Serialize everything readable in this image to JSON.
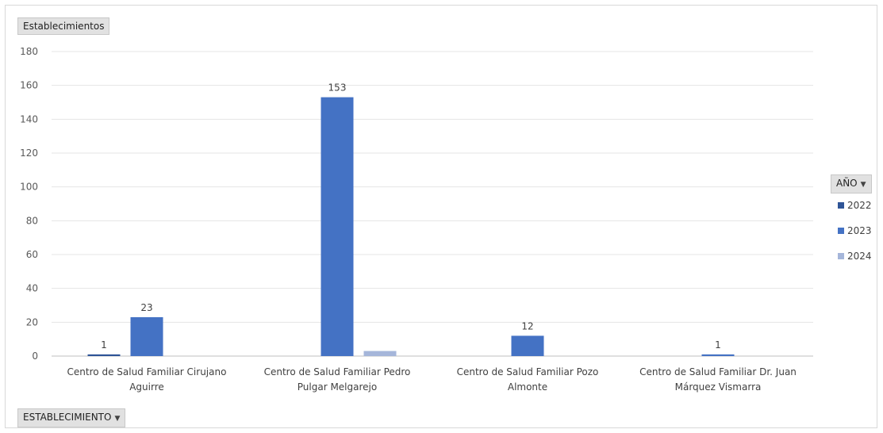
{
  "field_buttons": {
    "values_label": "Establecimientos",
    "legend_field_label": "AÑO",
    "axis_field_label": "ESTABLECIMIENTO"
  },
  "icons": {
    "dropdown": "chevron-down-icon"
  },
  "chart_data": {
    "type": "bar",
    "categories": [
      [
        "Centro de Salud Familiar Cirujano",
        "Aguirre"
      ],
      [
        "Centro de Salud Familiar Pedro",
        "Pulgar Melgarejo"
      ],
      [
        "Centro de Salud Familiar Pozo",
        "Almonte"
      ],
      [
        "Centro de Salud Familiar Dr. Juan",
        "Márquez Vismarra"
      ]
    ],
    "series": [
      {
        "name": "2022",
        "color": "#2f5597",
        "values": [
          1,
          0,
          0,
          0
        ],
        "labels": [
          "1",
          null,
          null,
          null
        ]
      },
      {
        "name": "2023",
        "color": "#4472c4",
        "values": [
          23,
          153,
          12,
          1
        ],
        "labels": [
          "23",
          "153",
          "12",
          "1"
        ]
      },
      {
        "name": "2024",
        "color": "#a5b6da",
        "values": [
          0,
          3,
          0,
          0
        ],
        "labels": [
          null,
          null,
          null,
          null
        ]
      }
    ],
    "ylim": [
      0,
      180
    ],
    "yticks": [
      0,
      20,
      40,
      60,
      80,
      100,
      120,
      140,
      160,
      180
    ],
    "grid": true,
    "legend_position": "right"
  }
}
